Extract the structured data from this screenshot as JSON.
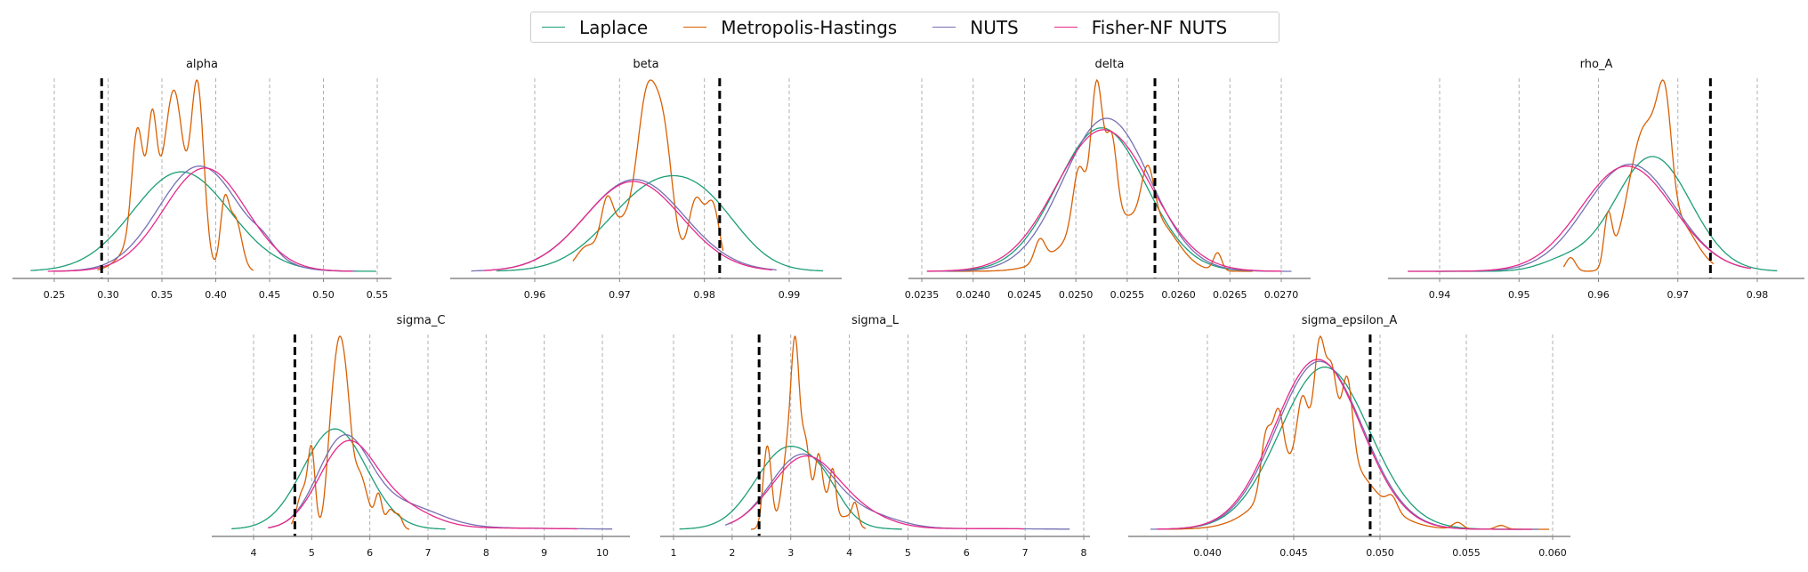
{
  "legend": {
    "items": [
      {
        "label": "Laplace",
        "color": "#1b9e77"
      },
      {
        "label": "Metropolis-Hastings",
        "color": "#d95f02"
      },
      {
        "label": "NUTS",
        "color": "#7570b3"
      },
      {
        "label": "Fisher-NF NUTS",
        "color": "#e7298a"
      }
    ]
  },
  "chart_data": [
    {
      "type": "line",
      "title": "alpha",
      "xlabel": "",
      "ylabel": "",
      "xticks": [
        0.25,
        0.3,
        0.35,
        0.4,
        0.45,
        0.5,
        0.55
      ],
      "xtick_labels": [
        "0.25",
        "0.30",
        "0.35",
        "0.40",
        "0.45",
        "0.50",
        "0.55"
      ],
      "xlim": [
        0.22,
        0.56
      ],
      "grid": "vertical-dashed",
      "true_value": 0.294,
      "series": [
        {
          "name": "Laplace",
          "range": [
            0.228,
            0.549
          ],
          "peak_at": 0.366,
          "relative_peak": 0.52
        },
        {
          "name": "Metropolis-Hastings",
          "range": [
            0.29,
            0.435
          ],
          "peak_at": 0.385,
          "relative_peak": 1.0
        },
        {
          "name": "NUTS",
          "range": [
            0.248,
            0.53
          ],
          "peak_at": 0.392,
          "relative_peak": 0.55
        },
        {
          "name": "Fisher-NF NUTS",
          "range": [
            0.244,
            0.527
          ],
          "peak_at": 0.394,
          "relative_peak": 0.54
        }
      ]
    },
    {
      "type": "line",
      "title": "beta",
      "xlabel": "",
      "ylabel": "",
      "xticks": [
        0.96,
        0.97,
        0.98,
        0.99
      ],
      "xtick_labels": [
        "0.96",
        "0.97",
        "0.98",
        "0.99"
      ],
      "xlim": [
        0.9505,
        0.9955
      ],
      "grid": "vertical-dashed",
      "true_value": 0.9818,
      "series": [
        {
          "name": "Laplace",
          "range": [
            0.9555,
            0.994
          ],
          "peak_at": 0.9745,
          "relative_peak": 0.5
        },
        {
          "name": "Metropolis-Hastings",
          "range": [
            0.9645,
            0.9822
          ],
          "peak_at": 0.9732,
          "relative_peak": 1.0
        },
        {
          "name": "NUTS",
          "range": [
            0.9525,
            0.9885
          ],
          "peak_at": 0.972,
          "relative_peak": 0.48
        },
        {
          "name": "Fisher-NF NUTS",
          "range": [
            0.954,
            0.988
          ],
          "peak_at": 0.9718,
          "relative_peak": 0.47
        }
      ]
    },
    {
      "type": "line",
      "title": "delta",
      "xlabel": "",
      "ylabel": "",
      "xticks": [
        0.0235,
        0.024,
        0.0245,
        0.025,
        0.0255,
        0.026,
        0.0265,
        0.027
      ],
      "xtick_labels": [
        "0.0235",
        "0.0240",
        "0.0245",
        "0.0250",
        "0.0255",
        "0.0260",
        "0.0265",
        "0.0270"
      ],
      "xlim": [
        0.02335,
        0.02735
      ],
      "grid": "vertical-dashed",
      "true_value": 0.02577,
      "series": [
        {
          "name": "Laplace",
          "range": [
            0.02365,
            0.02665
          ],
          "peak_at": 0.02523,
          "relative_peak": 0.75
        },
        {
          "name": "Metropolis-Hastings",
          "range": [
            0.02375,
            0.02672
          ],
          "peak_at": 0.02522,
          "relative_peak": 1.0
        },
        {
          "name": "NUTS",
          "range": [
            0.02355,
            0.0271
          ],
          "peak_at": 0.02537,
          "relative_peak": 0.8
        },
        {
          "name": "Fisher-NF NUTS",
          "range": [
            0.02355,
            0.027
          ],
          "peak_at": 0.02528,
          "relative_peak": 0.74
        }
      ]
    },
    {
      "type": "line",
      "title": "rho_A",
      "xlabel": "",
      "ylabel": "",
      "xticks": [
        0.94,
        0.95,
        0.96,
        0.97,
        0.98
      ],
      "xtick_labels": [
        "0.94",
        "0.95",
        "0.96",
        "0.97",
        "0.98"
      ],
      "xlim": [
        0.9335,
        0.9845
      ],
      "grid": "vertical-dashed",
      "true_value": 0.9741,
      "series": [
        {
          "name": "Laplace",
          "range": [
            0.9395,
            0.9825
          ],
          "peak_at": 0.9672,
          "relative_peak": 0.6
        },
        {
          "name": "Metropolis-Hastings",
          "range": [
            0.9556,
            0.9745
          ],
          "peak_at": 0.9683,
          "relative_peak": 1.0
        },
        {
          "name": "NUTS",
          "range": [
            0.936,
            0.9788
          ],
          "peak_at": 0.9643,
          "relative_peak": 0.56
        },
        {
          "name": "Fisher-NF NUTS",
          "range": [
            0.936,
            0.9792
          ],
          "peak_at": 0.9638,
          "relative_peak": 0.55
        }
      ]
    },
    {
      "type": "line",
      "title": "sigma_C",
      "xlabel": "",
      "ylabel": "",
      "xticks": [
        4,
        5,
        6,
        7,
        8,
        9,
        10
      ],
      "xtick_labels": [
        "4",
        "5",
        "6",
        "7",
        "8",
        "9",
        "10"
      ],
      "xlim": [
        3.3,
        10.5
      ],
      "grid": "vertical-dashed",
      "true_value": 4.71,
      "series": [
        {
          "name": "Laplace",
          "range": [
            3.62,
            7.3
          ],
          "peak_at": 5.52,
          "relative_peak": 0.52
        },
        {
          "name": "Metropolis-Hastings",
          "range": [
            4.65,
            6.68
          ],
          "peak_at": 5.46,
          "relative_peak": 1.0
        },
        {
          "name": "NUTS",
          "range": [
            4.25,
            10.17
          ],
          "peak_at": 5.6,
          "relative_peak": 0.49
        },
        {
          "name": "Fisher-NF NUTS",
          "range": [
            4.25,
            9.57
          ],
          "peak_at": 5.62,
          "relative_peak": 0.46
        }
      ]
    },
    {
      "type": "line",
      "title": "sigma_L",
      "xlabel": "",
      "ylabel": "",
      "xticks": [
        1,
        2,
        3,
        4,
        5,
        6,
        7,
        8
      ],
      "xtick_labels": [
        "1",
        "2",
        "3",
        "4",
        "5",
        "6",
        "7",
        "8"
      ],
      "xlim": [
        0.8,
        8.1
      ],
      "grid": "vertical-dashed",
      "true_value": 2.46,
      "series": [
        {
          "name": "Laplace",
          "range": [
            1.1,
            4.9
          ],
          "peak_at": 2.93,
          "relative_peak": 0.43
        },
        {
          "name": "Metropolis-Hastings",
          "range": [
            2.32,
            4.28
          ],
          "peak_at": 3.09,
          "relative_peak": 1.0
        },
        {
          "name": "NUTS",
          "range": [
            1.88,
            7.76
          ],
          "peak_at": 3.22,
          "relative_peak": 0.39
        },
        {
          "name": "Fisher-NF NUTS",
          "range": [
            1.94,
            6.98
          ],
          "peak_at": 3.25,
          "relative_peak": 0.38
        }
      ]
    },
    {
      "type": "line",
      "title": "sigma_epsilon_A",
      "xlabel": "",
      "ylabel": "",
      "xticks": [
        0.04,
        0.045,
        0.05,
        0.055,
        0.06
      ],
      "xtick_labels": [
        "0.040",
        "0.045",
        "0.050",
        "0.055",
        "0.060"
      ],
      "xlim": [
        0.0356,
        0.061
      ],
      "grid": "vertical-dashed",
      "true_value": 0.04943,
      "series": [
        {
          "name": "Laplace",
          "range": [
            0.0374,
            0.0582
          ],
          "peak_at": 0.0468,
          "relative_peak": 0.84
        },
        {
          "name": "Metropolis-Hastings",
          "range": [
            0.0372,
            0.0598
          ],
          "peak_at": 0.0466,
          "relative_peak": 1.0
        },
        {
          "name": "NUTS",
          "range": [
            0.0367,
            0.0592
          ],
          "peak_at": 0.0466,
          "relative_peak": 0.87
        },
        {
          "name": "Fisher-NF NUTS",
          "range": [
            0.0371,
            0.0588
          ],
          "peak_at": 0.0463,
          "relative_peak": 0.88
        }
      ]
    }
  ]
}
